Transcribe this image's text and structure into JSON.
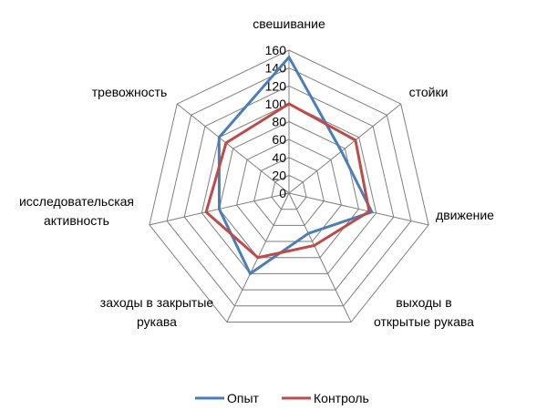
{
  "chart_data": {
    "type": "radar",
    "categories": [
      [
        "свешивание"
      ],
      [
        "стойки"
      ],
      [
        "движение"
      ],
      [
        "выходы в",
        "открытые рукава"
      ],
      [
        "заходы в закрытые",
        "рукава"
      ],
      [
        "исследовательская",
        "активность"
      ],
      [
        "тревожность"
      ]
    ],
    "series": [
      {
        "name": "Опыт",
        "color": "#4a7ebb",
        "values": [
          152,
          75,
          95,
          50,
          100,
          80,
          100
        ]
      },
      {
        "name": "Контроль",
        "color": "#be4b48",
        "values": [
          100,
          95,
          92,
          65,
          80,
          95,
          90
        ]
      }
    ],
    "rlim": [
      0,
      160
    ],
    "ticks": [
      "0",
      "20",
      "40",
      "60",
      "80",
      "100",
      "120",
      "140",
      "160"
    ],
    "grid": true,
    "legend": "bottom"
  }
}
